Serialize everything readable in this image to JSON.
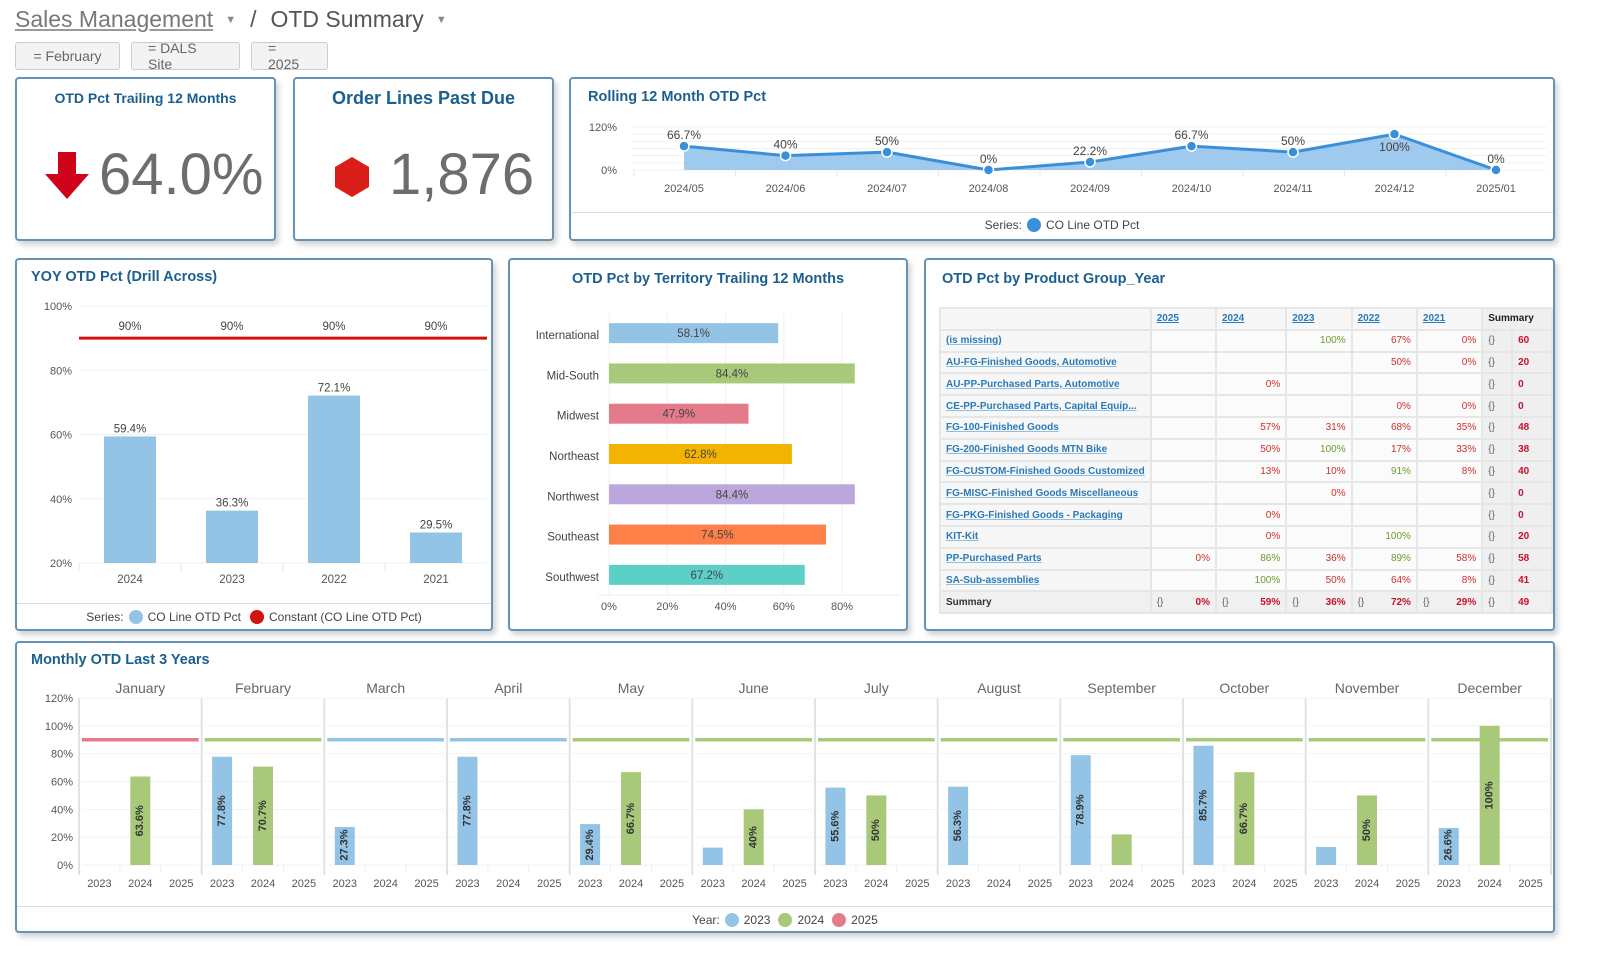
{
  "breadcrumb": {
    "parent": "Sales Management",
    "current": "OTD Summary"
  },
  "filters": [
    "= February",
    "= DALS Site",
    "= 2025"
  ],
  "kpi_otd": {
    "title": "OTD Pct Trailing 12 Months",
    "value": "64.0%",
    "icon": "arrow-down-icon",
    "color": "#d0021b"
  },
  "kpi_pastdue": {
    "title": "Order Lines Past Due",
    "value": "1,876",
    "icon": "hexagon-icon",
    "color": "#d0021b"
  },
  "rolling": {
    "title": "Rolling 12 Month OTD Pct",
    "legend_label": "Series:",
    "chart_data": {
      "type": "area",
      "title": "Rolling 12 Month OTD Pct",
      "x": [
        "2024/05",
        "2024/06",
        "2024/07",
        "2024/08",
        "2024/09",
        "2024/10",
        "2024/11",
        "2024/12",
        "2025/01"
      ],
      "series": [
        {
          "name": "CO Line OTD Pct",
          "values": [
            66.7,
            40,
            50,
            0,
            22.2,
            66.7,
            50,
            100,
            0
          ],
          "labels": [
            "66.7%",
            "40%",
            "50%",
            "0%",
            "22.2%",
            "66.7%",
            "50%",
            "100%",
            "0%"
          ],
          "color": "#3a8fd9"
        }
      ],
      "yticks": [
        "120%",
        "0%"
      ],
      "ylim": [
        0,
        120
      ],
      "legend": "bottom"
    }
  },
  "yoy": {
    "title": "YOY OTD Pct (Drill Across)",
    "legend_label": "Series:",
    "chart_data": {
      "type": "bar",
      "title": "YOY OTD Pct (Drill Across)",
      "categories": [
        "2024",
        "2023",
        "2022",
        "2021"
      ],
      "series": [
        {
          "name": "CO Line OTD Pct",
          "values": [
            59.4,
            36.3,
            72.1,
            29.5
          ],
          "labels": [
            "59.4%",
            "36.3%",
            "72.1%",
            "29.5%"
          ],
          "color": "#93c4e6"
        },
        {
          "name": "Constant (CO Line OTD Pct)",
          "values": [
            90,
            90,
            90,
            90
          ],
          "labels": [
            "90%",
            "90%",
            "90%",
            "90%"
          ],
          "color": "#d0140f"
        }
      ],
      "yticks": [
        "100%",
        "80%",
        "60%",
        "40%",
        "20%"
      ],
      "ylim": [
        20,
        100
      ],
      "legend": "bottom"
    }
  },
  "territory": {
    "title": "OTD Pct by Territory Trailing 12 Months",
    "chart_data": {
      "type": "bar",
      "orientation": "horizontal",
      "title": "OTD Pct by Territory Trailing 12 Months",
      "categories": [
        "International",
        "Mid-South",
        "Midwest",
        "Northeast",
        "Northwest",
        "Southeast",
        "Southwest"
      ],
      "values": [
        58.1,
        84.4,
        47.9,
        62.8,
        84.4,
        74.5,
        67.2
      ],
      "labels": [
        "58.1%",
        "84.4%",
        "47.9%",
        "62.8%",
        "84.4%",
        "74.5%",
        "67.2%"
      ],
      "colors": [
        "#93c4e6",
        "#a8c97a",
        "#e47b8a",
        "#f2b400",
        "#bba7dc",
        "#fd8048",
        "#5ccfc6"
      ],
      "xticks": [
        "0%",
        "20%",
        "40%",
        "60%",
        "80%"
      ],
      "xlim": [
        0,
        90
      ]
    }
  },
  "product_group": {
    "title": "OTD Pct by Product Group_Year",
    "columns": [
      "2025",
      "2024",
      "2023",
      "2022",
      "2021"
    ],
    "summary_header": "Summary",
    "summary_icon": "{}",
    "rows": [
      {
        "label": "(is missing)",
        "values": [
          "",
          "",
          "100%",
          "67%",
          "0%"
        ],
        "summary": "60"
      },
      {
        "label": "AU-FG-Finished Goods, Automotive",
        "values": [
          "",
          "",
          "",
          "50%",
          "0%"
        ],
        "summary": "20"
      },
      {
        "label": "AU-PP-Purchased Parts, Automotive",
        "values": [
          "",
          "0%",
          "",
          "",
          ""
        ],
        "summary": "0"
      },
      {
        "label": "CE-PP-Purchased Parts, Capital Equip...",
        "values": [
          "",
          "",
          "",
          "0%",
          "0%"
        ],
        "summary": "0"
      },
      {
        "label": "FG-100-Finished Goods",
        "values": [
          "",
          "57%",
          "31%",
          "68%",
          "35%"
        ],
        "summary": "48"
      },
      {
        "label": "FG-200-Finished Goods MTN Bike",
        "values": [
          "",
          "50%",
          "100%",
          "17%",
          "33%"
        ],
        "summary": "38"
      },
      {
        "label": "FG-CUSTOM-Finished Goods Customized",
        "values": [
          "",
          "13%",
          "10%",
          "91%",
          "8%"
        ],
        "summary": "40"
      },
      {
        "label": "FG-MISC-Finished Goods Miscellaneous",
        "values": [
          "",
          "",
          "0%",
          "",
          ""
        ],
        "summary": "0"
      },
      {
        "label": "FG-PKG-Finished Goods - Packaging",
        "values": [
          "",
          "0%",
          "",
          "",
          ""
        ],
        "summary": "0"
      },
      {
        "label": "KIT-Kit",
        "values": [
          "",
          "0%",
          "",
          "100%",
          ""
        ],
        "summary": "20"
      },
      {
        "label": "PP-Purchased Parts",
        "values": [
          "0%",
          "86%",
          "36%",
          "89%",
          "58%"
        ],
        "summary": "58"
      },
      {
        "label": "SA-Sub-assemblies",
        "values": [
          "",
          "100%",
          "50%",
          "64%",
          "8%"
        ],
        "summary": "41"
      }
    ],
    "summary_row": {
      "label": "Summary",
      "values": [
        "0%",
        "59%",
        "36%",
        "72%",
        "29%"
      ],
      "summary": "49"
    }
  },
  "monthly": {
    "title": "Monthly OTD Last 3 Years",
    "legend_label": "Year:",
    "chart_data": {
      "type": "bar",
      "title": "Monthly OTD Last 3 Years",
      "facets": [
        "January",
        "February",
        "March",
        "April",
        "May",
        "June",
        "July",
        "August",
        "September",
        "October",
        "November",
        "December"
      ],
      "categories": [
        "2023",
        "2024",
        "2025"
      ],
      "series": [
        {
          "name": "2023",
          "color": "#93c4e6",
          "values": [
            null,
            77.8,
            27.3,
            77.8,
            29.4,
            12.5,
            55.6,
            56.3,
            78.9,
            85.7,
            13,
            26.6
          ],
          "labels": [
            "",
            "77.8%",
            "27.3%",
            "77.8%",
            "29.4%",
            "",
            "55.6%",
            "56.3%",
            "78.9%",
            "85.7%",
            "",
            "26.6%"
          ]
        },
        {
          "name": "2024",
          "color": "#a8c97a",
          "values": [
            63.6,
            70.7,
            null,
            null,
            66.7,
            40,
            50,
            null,
            22,
            66.7,
            50,
            100
          ],
          "labels": [
            "63.6%",
            "70.7%",
            "",
            "",
            "66.7%",
            "40%",
            "50%",
            "",
            "",
            "66.7%",
            "50%",
            "100%"
          ]
        },
        {
          "name": "2025",
          "color": "#e47b8a",
          "values": [
            null,
            null,
            null,
            null,
            null,
            null,
            null,
            null,
            null,
            null,
            null,
            null
          ],
          "labels": [
            "",
            "",
            "",
            "",
            "",
            "",
            "",
            "",
            "",
            "",
            "",
            ""
          ]
        }
      ],
      "target": {
        "value": 90,
        "colors": [
          "#e47b8a",
          "#a8c97a",
          "#93c4e6",
          "#93c4e6",
          "#a8c97a",
          "#a8c97a",
          "#a8c97a",
          "#a8c97a",
          "#a8c97a",
          "#a8c97a",
          "#a8c97a",
          "#a8c97a"
        ]
      },
      "yticks": [
        "120%",
        "100%",
        "80%",
        "60%",
        "40%",
        "20%",
        "0%"
      ],
      "ylim": [
        0,
        120
      ],
      "legend": "bottom"
    }
  }
}
